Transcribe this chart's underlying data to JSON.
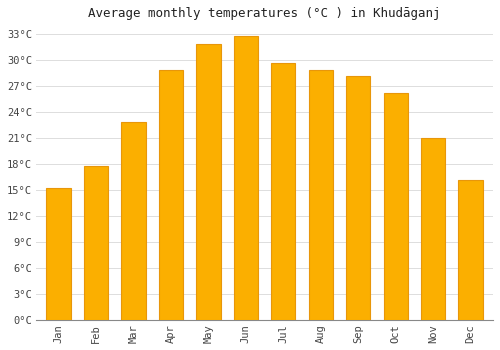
{
  "title": "Average monthly temperatures (°C ) in Khudāganj",
  "months": [
    "Jan",
    "Feb",
    "Mar",
    "Apr",
    "May",
    "Jun",
    "Jul",
    "Aug",
    "Sep",
    "Oct",
    "Nov",
    "Dec"
  ],
  "values": [
    15.2,
    17.8,
    22.8,
    28.8,
    31.8,
    32.8,
    29.6,
    28.8,
    28.2,
    26.2,
    21.0,
    16.2
  ],
  "bar_color": "#FBAF00",
  "bar_edge_color": "#E8960A",
  "background_color": "#FFFFFF",
  "plot_bg_color": "#FFFFFF",
  "grid_color": "#DDDDDD",
  "ylim": [
    0,
    34
  ],
  "yticks": [
    0,
    3,
    6,
    9,
    12,
    15,
    18,
    21,
    24,
    27,
    30,
    33
  ],
  "ytick_labels": [
    "0°C",
    "3°C",
    "6°C",
    "9°C",
    "12°C",
    "15°C",
    "18°C",
    "21°C",
    "24°C",
    "27°C",
    "30°C",
    "33°C"
  ],
  "title_fontsize": 9,
  "tick_fontsize": 7.5,
  "figsize": [
    5.0,
    3.5
  ],
  "dpi": 100,
  "bar_width": 0.65
}
